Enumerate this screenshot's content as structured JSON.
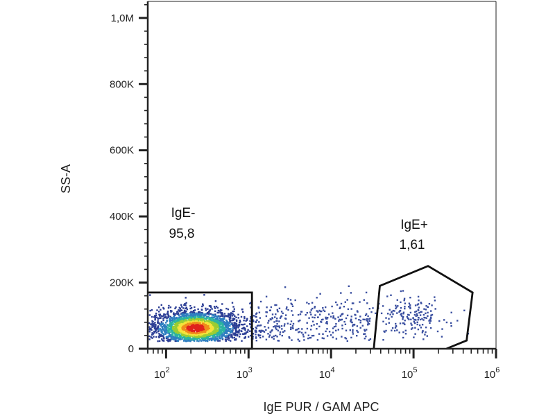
{
  "chart_data": {
    "type": "scatter",
    "subtype": "flow-cytometry-density-plot",
    "xlabel": "IgE PUR / GAM APC",
    "ylabel": "SS-A",
    "x_scale": "log",
    "xlim": [
      60,
      1000000
    ],
    "ylim": [
      0,
      1050000
    ],
    "x_ticks": [
      {
        "base": "10",
        "exp": "2",
        "value": 100
      },
      {
        "base": "10",
        "exp": "3",
        "value": 1000
      },
      {
        "base": "10",
        "exp": "4",
        "value": 10000
      },
      {
        "base": "10",
        "exp": "5",
        "value": 100000
      },
      {
        "base": "10",
        "exp": "6",
        "value": 1000000
      }
    ],
    "y_ticks": [
      {
        "label": "0",
        "value": 0
      },
      {
        "label": "200K",
        "value": 200000
      },
      {
        "label": "400K",
        "value": 400000
      },
      {
        "label": "600K",
        "value": 600000
      },
      {
        "label": "800K",
        "value": 800000
      },
      {
        "label": "1,0M",
        "value": 1000000
      }
    ],
    "gates": [
      {
        "name": "IgE-",
        "percent": "95,8",
        "shape": "rectangle",
        "polygon": [
          [
            60,
            170000
          ],
          [
            1100,
            170000
          ],
          [
            1100,
            0
          ],
          [
            60,
            0
          ]
        ]
      },
      {
        "name": "IgE+",
        "percent": "1,61",
        "shape": "polygon",
        "polygon": [
          [
            33000,
            0
          ],
          [
            39000,
            190000
          ],
          [
            150000,
            250000
          ],
          [
            520000,
            170000
          ],
          [
            440000,
            25000
          ],
          [
            250000,
            0
          ]
        ]
      }
    ],
    "populations": [
      {
        "description": "IgE- dense cluster",
        "x_center_log10": 2.35,
        "x_spread_log10": 0.28,
        "y_center": 65000,
        "y_spread": 28000,
        "weight": 0.86,
        "color_scale": "density"
      },
      {
        "description": "intermediate scatter",
        "x_range_log10": [
          3.0,
          4.5
        ],
        "y_center": 80000,
        "y_spread": 40000,
        "weight": 0.1,
        "color": "#3a4fa0"
      },
      {
        "description": "IgE+ cluster",
        "x_center_log10": 4.95,
        "x_spread_log10": 0.22,
        "y_center": 100000,
        "y_spread": 30000,
        "weight": 0.04,
        "color": "#3a4fa0"
      }
    ],
    "density_colors": [
      "#2c3e95",
      "#2f7fc1",
      "#2bb3a0",
      "#9acd32",
      "#f5e33a",
      "#f08c1c",
      "#e0231c"
    ],
    "grid": false,
    "legend": "none"
  }
}
